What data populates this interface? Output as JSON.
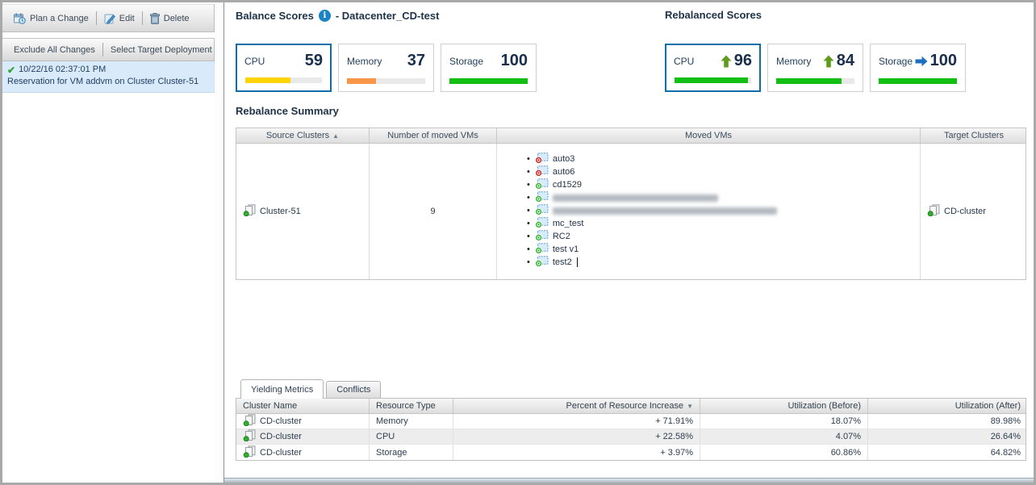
{
  "sidebar": {
    "toolbar": {
      "plan_label": "Plan a Change",
      "edit_label": "Edit",
      "delete_label": "Delete"
    },
    "actions": {
      "exclude_label": "Exclude All Changes",
      "select_target_label": "Select Target Deployment Da"
    },
    "selected_change": {
      "timestamp": "10/22/16 02:37:01 PM",
      "description": "Reservation for VM addvm on Cluster Cluster-51"
    }
  },
  "balance": {
    "title": "Balance Scores",
    "suffix": "- Datacenter_CD-test",
    "cards": [
      {
        "label": "CPU",
        "value": 59,
        "pct": 59,
        "bar_color": "#ffd400",
        "selected": true
      },
      {
        "label": "Memory",
        "value": 37,
        "pct": 37,
        "bar_color": "#f79646",
        "selected": false
      },
      {
        "label": "Storage",
        "value": 100,
        "pct": 100,
        "bar_color": "#12bf12",
        "selected": false
      }
    ]
  },
  "rebalanced": {
    "title": "Rebalanced Scores",
    "cards": [
      {
        "label": "CPU",
        "value": 96,
        "pct": 96,
        "bar_color": "#12bf12",
        "trend": "up",
        "selected": true
      },
      {
        "label": "Memory",
        "value": 84,
        "pct": 84,
        "bar_color": "#12bf12",
        "trend": "up",
        "selected": false
      },
      {
        "label": "Storage",
        "value": 100,
        "pct": 100,
        "bar_color": "#12bf12",
        "trend": "flat",
        "selected": false
      }
    ]
  },
  "summary": {
    "title": "Rebalance Summary",
    "columns": [
      "Source Clusters",
      "Number of moved VMs",
      "Moved VMs",
      "Target Clusters"
    ],
    "sort_indicator": "▲",
    "row": {
      "source_cluster": "Cluster-51",
      "moved_count": "9",
      "target_cluster": "CD-cluster",
      "moved_vms": [
        {
          "name": "auto3",
          "status": "off"
        },
        {
          "name": "auto6",
          "status": "off"
        },
        {
          "name": "cd1529",
          "status": "on"
        },
        {
          "name": "",
          "status": "on",
          "redacted": true,
          "blur_width": 205
        },
        {
          "name": "",
          "status": "on",
          "redacted": true,
          "blur_width": 278
        },
        {
          "name": "mc_test",
          "status": "on"
        },
        {
          "name": "RC2",
          "status": "on"
        },
        {
          "name": "test v1",
          "status": "on"
        },
        {
          "name": "test2",
          "status": "on",
          "caret": true
        }
      ]
    }
  },
  "metrics": {
    "tabs": {
      "yielding_label": "Yielding Metrics",
      "conflicts_label": "Conflicts"
    },
    "columns": [
      "Cluster Name",
      "Resource Type",
      "Percent of Resource Increase",
      "Utilization (Before)",
      "Utilization (After)"
    ],
    "sort_indicator": "▼",
    "rows": [
      {
        "cluster": "CD-cluster",
        "resource": "Memory",
        "increase": "+ 71.91%",
        "before": "18.07%",
        "after": "89.98%"
      },
      {
        "cluster": "CD-cluster",
        "resource": "CPU",
        "increase": "+ 22.58%",
        "before": "4.07%",
        "after": "26.64%"
      },
      {
        "cluster": "CD-cluster",
        "resource": "Storage",
        "increase": "+ 3.97%",
        "before": "60.86%",
        "after": "64.82%"
      }
    ]
  }
}
